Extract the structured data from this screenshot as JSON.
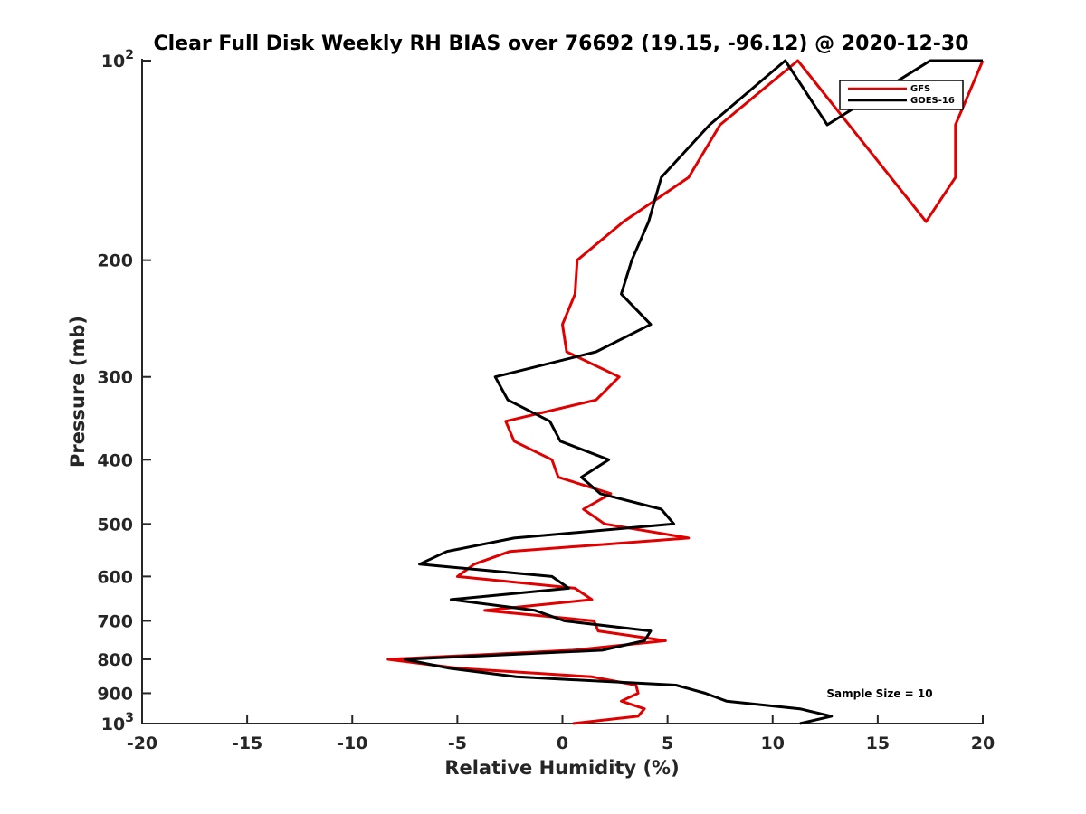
{
  "chart_data": {
    "type": "line",
    "title": "Clear Full Disk Weekly RH BIAS over 76692 (19.15, -96.12) @ 2020-12-30",
    "xlabel": "Relative Humidity (%)",
    "ylabel": "Pressure (mb)",
    "xlim": [
      -20,
      20
    ],
    "ylim": [
      100,
      1000
    ],
    "yscale": "log",
    "y_reversed": true,
    "xticks": [
      -20,
      -15,
      -10,
      -5,
      0,
      5,
      10,
      15,
      20
    ],
    "xtick_labels": [
      "-20",
      "-15",
      "-10",
      "-5",
      "0",
      "5",
      "10",
      "15",
      "20"
    ],
    "yticks_mid": [
      200,
      300,
      400,
      500,
      600,
      700,
      800,
      900
    ],
    "ytick_labels_mid": [
      "200",
      "300",
      "400",
      "500",
      "600",
      "700",
      "800",
      "900"
    ],
    "ytick_top": {
      "base": "10",
      "exp": "2",
      "value": 100
    },
    "ytick_bottom": {
      "base": "10",
      "exp": "3",
      "value": 1000
    },
    "legend_position": "top-right",
    "annotation": "Sample Size = 10",
    "series": [
      {
        "name": "GFS",
        "color": "#e00000",
        "x": [
          0.5,
          3.6,
          3.9,
          2.8,
          3.6,
          3.5,
          1.4,
          -5.0,
          -8.3,
          0.5,
          4.9,
          1.7,
          1.5,
          -3.7,
          1.4,
          0.6,
          -5.0,
          -4.2,
          -2.5,
          6.0,
          2.0,
          1.0,
          2.3,
          -0.2,
          -0.5,
          -2.3,
          -2.7,
          1.6,
          2.7,
          0.2,
          0.0,
          0.6,
          0.7,
          2.9,
          6.0,
          7.5,
          11.2,
          17.3,
          18.7,
          18.7,
          20.0
        ],
        "y": [
          1000,
          975,
          950,
          925,
          900,
          875,
          850,
          825,
          800,
          775,
          750,
          725,
          700,
          675,
          650,
          625,
          600,
          575,
          550,
          525,
          500,
          475,
          450,
          425,
          400,
          375,
          350,
          325,
          300,
          275,
          250,
          225,
          200,
          175,
          150,
          125,
          100,
          175,
          150,
          125,
          100
        ]
      },
      {
        "name": "GOES-16",
        "color": "#000000",
        "x": [
          11.3,
          12.8,
          11.3,
          7.8,
          6.8,
          5.4,
          -2.2,
          -5.4,
          -7.5,
          1.9,
          3.9,
          4.2,
          0.1,
          -1.3,
          -5.3,
          0.3,
          -0.5,
          -6.8,
          -5.5,
          -2.3,
          5.3,
          4.7,
          1.8,
          0.9,
          2.2,
          -0.1,
          -0.6,
          -2.6,
          -3.2,
          1.6,
          4.2,
          2.8,
          3.3,
          4.1,
          4.7,
          7.0,
          10.6,
          12.6,
          17.5,
          20.0
        ],
        "y": [
          1000,
          975,
          950,
          925,
          900,
          875,
          850,
          825,
          800,
          775,
          750,
          725,
          700,
          675,
          650,
          625,
          600,
          575,
          550,
          525,
          500,
          475,
          450,
          425,
          400,
          375,
          350,
          325,
          300,
          275,
          250,
          225,
          200,
          175,
          150,
          125,
          100,
          125,
          100,
          100
        ]
      }
    ]
  }
}
